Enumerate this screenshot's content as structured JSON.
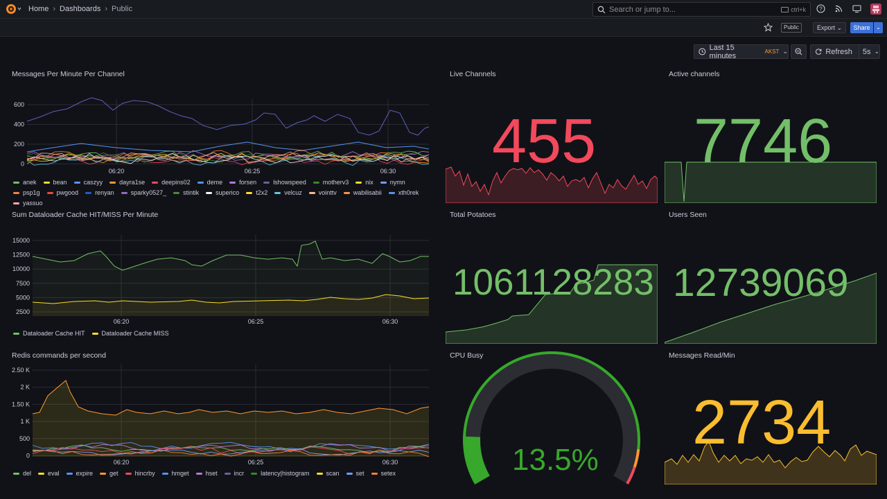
{
  "breadcrumb": {
    "home": "Home",
    "dashboards": "Dashboards",
    "current": "Public"
  },
  "search": {
    "placeholder": "Search or jump to...",
    "shortcut": "ctrl+k"
  },
  "toolbar": {
    "public_badge": "Public",
    "export_label": "Export",
    "share_label": "Share"
  },
  "timepicker": {
    "range": "Last 15 minutes",
    "timezone": "AKST",
    "refresh_label": "Refresh",
    "interval": "5s"
  },
  "panels": {
    "messages": {
      "title": "Messages Per Minute Per Channel",
      "y_ticks": [
        "600",
        "400",
        "200",
        "0"
      ],
      "x_ticks": [
        "06:20",
        "06:25",
        "06:30"
      ],
      "legend": [
        {
          "name": "anek",
          "color": "#73bf69"
        },
        {
          "name": "bean",
          "color": "#fade2a"
        },
        {
          "name": "caszyy",
          "color": "#5794f2"
        },
        {
          "name": "dayra1se",
          "color": "#ff9830"
        },
        {
          "name": "deepins02",
          "color": "#f2495c"
        },
        {
          "name": "deme",
          "color": "#5794f2"
        },
        {
          "name": "forsen",
          "color": "#b877d9"
        },
        {
          "name": "lshowspeed",
          "color": "#705da0"
        },
        {
          "name": "motherv3",
          "color": "#37872d"
        },
        {
          "name": "nix",
          "color": "#fade2a"
        },
        {
          "name": "nymn",
          "color": "#6e9fff"
        },
        {
          "name": "psp1g",
          "color": "#ef843c"
        },
        {
          "name": "pwgood",
          "color": "#e24d42"
        },
        {
          "name": "renyan",
          "color": "#1f60c4"
        },
        {
          "name": "sparky0527_",
          "color": "#8e6fbf"
        },
        {
          "name": "stintik",
          "color": "#508642"
        },
        {
          "name": "superico",
          "color": "#f4f5f5"
        },
        {
          "name": "t2x2",
          "color": "#fade2a"
        },
        {
          "name": "velcuz",
          "color": "#65c5db"
        },
        {
          "name": "vointtv",
          "color": "#f9ba8f"
        },
        {
          "name": "wabilisabii",
          "color": "#f9934e"
        },
        {
          "name": "xth0rek",
          "color": "#5794f2"
        },
        {
          "name": "yassuo",
          "color": "#ffa6b0"
        }
      ]
    },
    "live_channels": {
      "title": "Live Channels",
      "value": "455",
      "color": "#f2495c"
    },
    "active_channels": {
      "title": "Active channels",
      "value": "7746",
      "color": "#73bf69"
    },
    "dataloader": {
      "title": "Sum Dataloader Cache HIT/MISS Per Minute",
      "y_ticks": [
        "15000",
        "12500",
        "10000",
        "7500",
        "5000",
        "2500"
      ],
      "x_ticks": [
        "06:20",
        "06:25",
        "06:30"
      ],
      "legend": [
        {
          "name": "Dataloader Cache HIT",
          "color": "#73bf69"
        },
        {
          "name": "Dataloader Cache MISS",
          "color": "#fade2a"
        }
      ]
    },
    "potatoes": {
      "title": "Total Potatoes",
      "value": "1061128283",
      "color": "#73bf69"
    },
    "users_seen": {
      "title": "Users Seen",
      "value": "12739069",
      "color": "#73bf69"
    },
    "redis": {
      "title": "Redis commands per second",
      "y_ticks": [
        "2.50 K",
        "2 K",
        "1.50 K",
        "1 K",
        "500",
        "0"
      ],
      "x_ticks": [
        "06:20",
        "06:25",
        "06:30"
      ],
      "legend": [
        {
          "name": "del",
          "color": "#73bf69"
        },
        {
          "name": "eval",
          "color": "#fade2a"
        },
        {
          "name": "expire",
          "color": "#5794f2"
        },
        {
          "name": "get",
          "color": "#ff9830"
        },
        {
          "name": "hincrby",
          "color": "#f2495c"
        },
        {
          "name": "hmget",
          "color": "#5794f2"
        },
        {
          "name": "hset",
          "color": "#b877d9"
        },
        {
          "name": "incr",
          "color": "#705da0"
        },
        {
          "name": "latency|histogram",
          "color": "#37872d"
        },
        {
          "name": "scan",
          "color": "#fade2a"
        },
        {
          "name": "set",
          "color": "#6e9fff"
        },
        {
          "name": "setex",
          "color": "#ef843c"
        }
      ]
    },
    "cpu": {
      "title": "CPU Busy",
      "value": "13.5%",
      "value_percent": 13.5,
      "color": "#37a82b"
    },
    "messages_read": {
      "title": "Messages Read/Min",
      "value": "2734",
      "color": "#fabd2f"
    }
  }
}
